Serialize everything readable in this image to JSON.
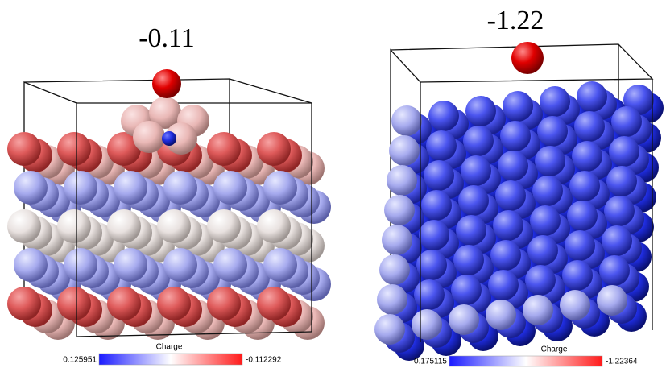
{
  "panels": [
    {
      "title": "-0.11",
      "colorbar": {
        "label": "Charge",
        "min_label": "0.125951",
        "max_label": "-0.112292"
      }
    },
    {
      "title": "-1.22",
      "colorbar": {
        "label": "Charge",
        "min_label": "0.175115",
        "max_label": "-1.22364"
      }
    }
  ]
}
